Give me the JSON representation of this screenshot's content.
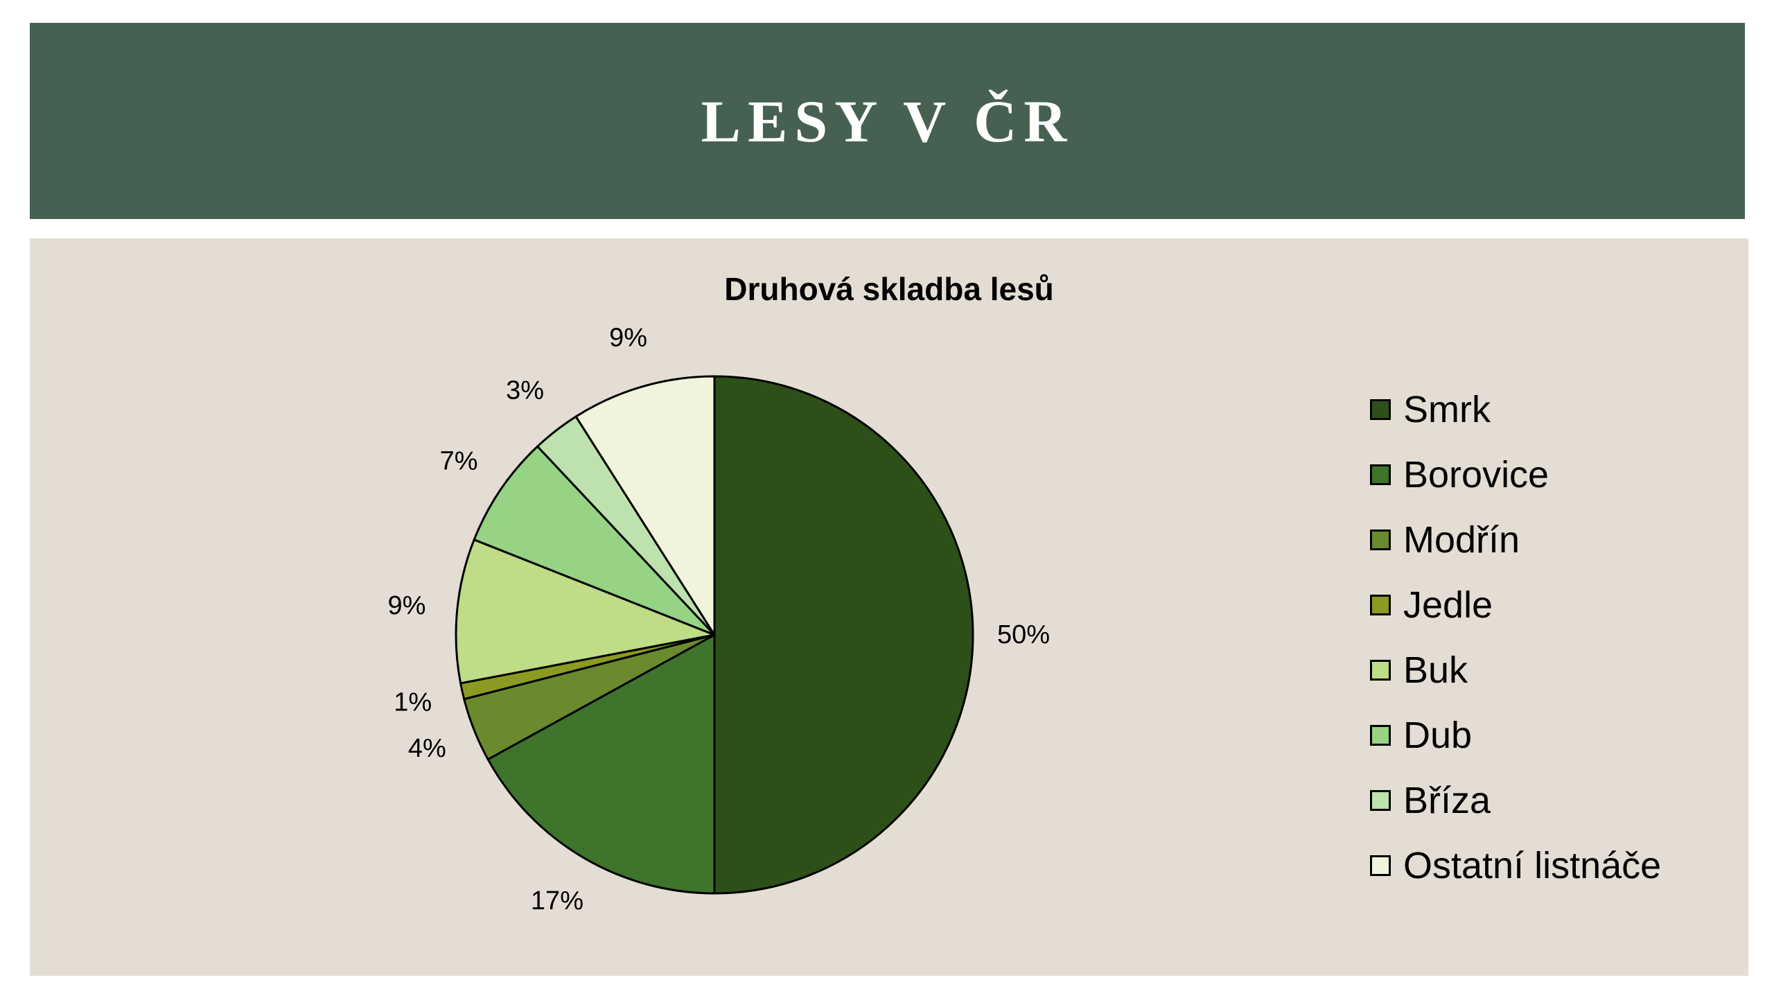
{
  "header": {
    "title": "LESY V ČR"
  },
  "chart_data": {
    "type": "pie",
    "title": "Druhová skladba lesů",
    "legend_position": "right",
    "slices": [
      {
        "name": "Smrk",
        "value": 50,
        "label": "50%",
        "color": "#2d5019"
      },
      {
        "name": "Borovice",
        "value": 17,
        "label": "17%",
        "color": "#3e742b"
      },
      {
        "name": "Modřín",
        "value": 4,
        "label": "4%",
        "color": "#6a8a2e"
      },
      {
        "name": "Jedle",
        "value": 1,
        "label": "1%",
        "color": "#8b9a22"
      },
      {
        "name": "Buk",
        "value": 9,
        "label": "9%",
        "color": "#bfdc86"
      },
      {
        "name": "Dub",
        "value": 7,
        "label": "7%",
        "color": "#96d384"
      },
      {
        "name": "Bříza",
        "value": 3,
        "label": "3%",
        "color": "#bde2ad"
      },
      {
        "name": "Ostatní listnáče",
        "value": 9,
        "label": "9%",
        "color": "#f1f4dc"
      }
    ]
  }
}
